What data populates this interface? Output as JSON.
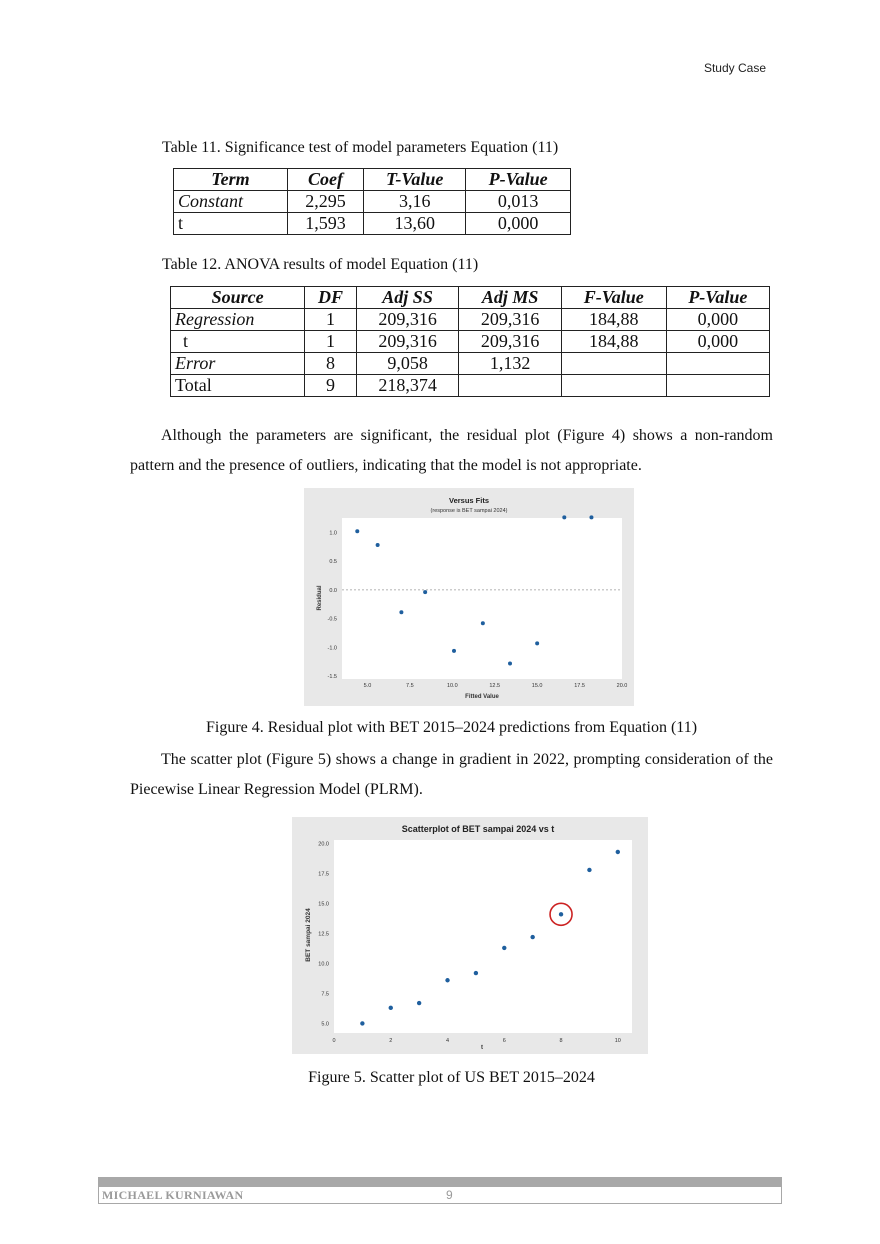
{
  "header": {
    "tag": "Study Case"
  },
  "table11": {
    "caption": "Table 11. Significance test of model parameters Equation (11)",
    "headers": [
      "Term",
      "Coef",
      "T-Value",
      "P-Value"
    ],
    "rows": [
      [
        "Constant",
        "2,295",
        "3,16",
        "0,013"
      ],
      [
        "t",
        "1,593",
        "13,60",
        "0,000"
      ]
    ]
  },
  "table12": {
    "caption": "Table 12. ANOVA results of model Equation (11)",
    "headers": [
      "Source",
      "DF",
      "Adj SS",
      "Adj MS",
      "F-Value",
      "P-Value"
    ],
    "rows": [
      [
        "Regression",
        "1",
        "209,316",
        "209,316",
        "184,88",
        "0,000"
      ],
      [
        "t",
        "1",
        "209,316",
        "209,316",
        "184,88",
        "0,000"
      ],
      [
        "Error",
        "8",
        "9,058",
        "1,132",
        "",
        ""
      ],
      [
        "Total",
        "9",
        "218,374",
        "",
        "",
        ""
      ]
    ]
  },
  "paragraph1": "Although the parameters are significant, the residual plot (Figure 4) shows a non-random pattern and the presence of outliers, indicating that the model is not appropriate.",
  "figure4": {
    "caption": "Figure 4. Residual plot with BET 2015–2024 predictions from Equation (11)"
  },
  "paragraph2": "The scatter plot (Figure 5) shows a change in gradient in 2022, prompting consideration of the Piecewise Linear Regression Model (PLRM).",
  "figure5": {
    "caption": "Figure 5. Scatter plot of US BET 2015–2024"
  },
  "footer": {
    "author": "MICHAEL KURNIAWAN",
    "page": "9"
  },
  "chart_data": [
    {
      "type": "scatter",
      "title": "Versus Fits",
      "subtitle": "(response is BET sampai 2024)",
      "xlabel": "Fitted Value",
      "ylabel": "Residual",
      "xlim": [
        3.5,
        20.0
      ],
      "ylim": [
        -1.55,
        1.25
      ],
      "xticks": [
        "5.0",
        "7.5",
        "10.0",
        "12.5",
        "15.0",
        "17.5",
        "20.0"
      ],
      "yticks": [
        "1.0",
        "0.5",
        "0.0",
        "-0.5",
        "-1.0",
        "-1.5"
      ],
      "reference_line": 0,
      "color": "#1f5f9e",
      "x": [
        4.4,
        5.6,
        7.0,
        8.4,
        10.1,
        11.8,
        13.4,
        15.0,
        16.6,
        18.2
      ],
      "y": [
        1.02,
        0.78,
        -0.39,
        -0.04,
        -1.06,
        -0.58,
        -1.28,
        -0.93,
        1.26,
        1.26
      ]
    },
    {
      "type": "scatter",
      "title": "Scatterplot of BET sampai 2024 vs t",
      "xlabel": "t",
      "ylabel": "BET sampai 2024",
      "xlim": [
        0,
        10.5
      ],
      "ylim": [
        4.2,
        20.3
      ],
      "xticks": [
        "0",
        "2",
        "4",
        "6",
        "8",
        "10"
      ],
      "yticks": [
        "20.0",
        "17.5",
        "15.0",
        "12.5",
        "10.0",
        "7.5",
        "5.0"
      ],
      "color": "#1f5f9e",
      "highlight": {
        "point_index": 7,
        "color": "#cc2222"
      },
      "x": [
        1,
        2,
        3,
        4,
        5,
        6,
        7,
        8,
        9,
        10
      ],
      "y": [
        5.0,
        6.3,
        6.7,
        8.6,
        9.2,
        11.3,
        12.2,
        14.1,
        17.8,
        19.3
      ]
    }
  ]
}
